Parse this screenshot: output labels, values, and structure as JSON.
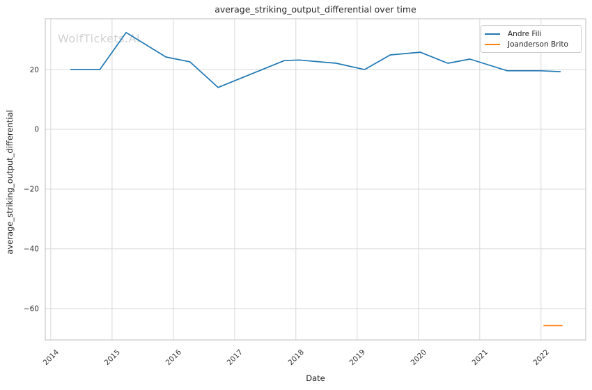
{
  "watermark": "WolfTickets.AI",
  "chart_data": {
    "type": "line",
    "title": "average_striking_output_differential over time",
    "xlabel": "Date",
    "ylabel": "average_striking_output_differential",
    "grid": true,
    "legend_position": "upper right",
    "xlim": [
      2013.91,
      2022.73
    ],
    "ylim": [
      -70.5,
      37.0
    ],
    "x_ticks": [
      {
        "v": 2014,
        "label": "2014"
      },
      {
        "v": 2015,
        "label": "2015"
      },
      {
        "v": 2016,
        "label": "2016"
      },
      {
        "v": 2017,
        "label": "2017"
      },
      {
        "v": 2018,
        "label": "2018"
      },
      {
        "v": 2019,
        "label": "2019"
      },
      {
        "v": 2020,
        "label": "2020"
      },
      {
        "v": 2021,
        "label": "2021"
      },
      {
        "v": 2022,
        "label": "2022"
      }
    ],
    "y_ticks": [
      {
        "v": 20,
        "label": "20"
      },
      {
        "v": 0,
        "label": "0"
      },
      {
        "v": -20,
        "label": "−20"
      },
      {
        "v": -40,
        "label": "−40"
      },
      {
        "v": -60,
        "label": "−60"
      }
    ],
    "series": [
      {
        "name": "Andre Fili",
        "color": "#1f77b4",
        "x": [
          2014.32,
          2014.8,
          2015.23,
          2015.88,
          2016.27,
          2016.73,
          2017.81,
          2018.05,
          2018.66,
          2019.12,
          2019.54,
          2020.03,
          2020.48,
          2020.84,
          2021.45,
          2022.0,
          2022.32
        ],
        "y": [
          20.0,
          20.0,
          32.4,
          24.2,
          22.6,
          14.0,
          23.0,
          23.2,
          22.1,
          20.0,
          24.9,
          25.8,
          22.1,
          23.5,
          19.6,
          19.6,
          19.3
        ]
      },
      {
        "name": "Joanderson Brito",
        "color": "#ff7f0e",
        "x": [
          2022.04,
          2022.35
        ],
        "y": [
          -65.7,
          -65.7
        ]
      }
    ]
  },
  "style": {
    "grid_color": "#d9d9d9",
    "spine_color": "#cccccc",
    "tick_text_color": "#333333"
  }
}
